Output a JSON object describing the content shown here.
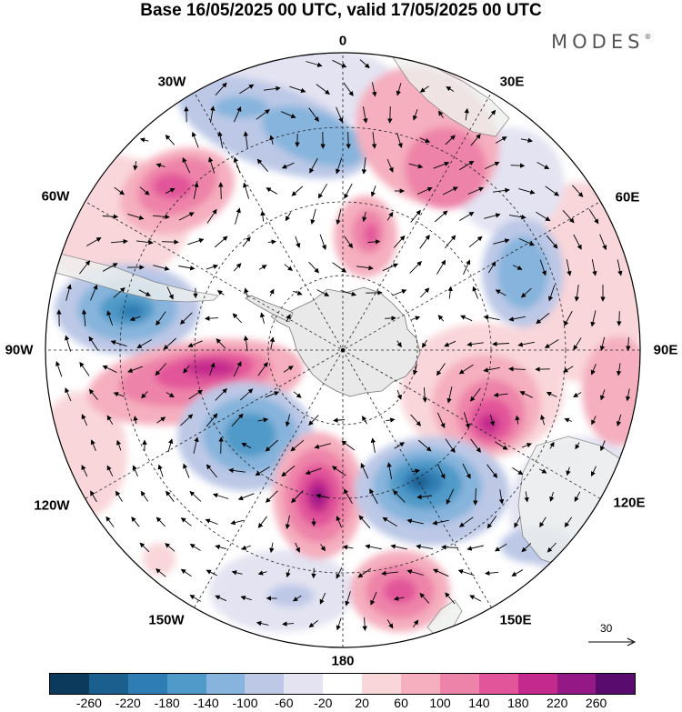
{
  "title": "Base 16/05/2025 00 UTC, valid 17/05/2025 00 UTC",
  "brand": {
    "name": "MODES",
    "mark": "®"
  },
  "map": {
    "projection": "south-polar-stereographic",
    "meridian_labels": {
      "deg_0": "0",
      "deg_30e": "30E",
      "deg_60e": "60E",
      "deg_90e": "90E",
      "deg_120e": "120E",
      "deg_150e": "150E",
      "deg_180": "180",
      "deg_150w": "150W",
      "deg_120w": "120W",
      "deg_90w": "90W",
      "deg_60w": "60W",
      "deg_30w": "30W"
    },
    "wind_reference": {
      "label": "30"
    },
    "colors": {
      "land_fill": "#e9e9e9",
      "coast": "#777777",
      "grid": "#222222"
    }
  },
  "colorbar": {
    "colors": [
      "#0c3a5c",
      "#1a5f8e",
      "#2e7db4",
      "#4f9ac8",
      "#86b4dc",
      "#bcc8e6",
      "#e3e3f2",
      "#ffffff",
      "#f9d6d9",
      "#f5afbe",
      "#ee83a9",
      "#e2559a",
      "#c42a8e",
      "#951887",
      "#5a0c6e"
    ],
    "ticks": [
      "-260",
      "-220",
      "-180",
      "-140",
      "-100",
      "-60",
      "-20",
      "20",
      "60",
      "100",
      "140",
      "180",
      "220",
      "260"
    ]
  }
}
